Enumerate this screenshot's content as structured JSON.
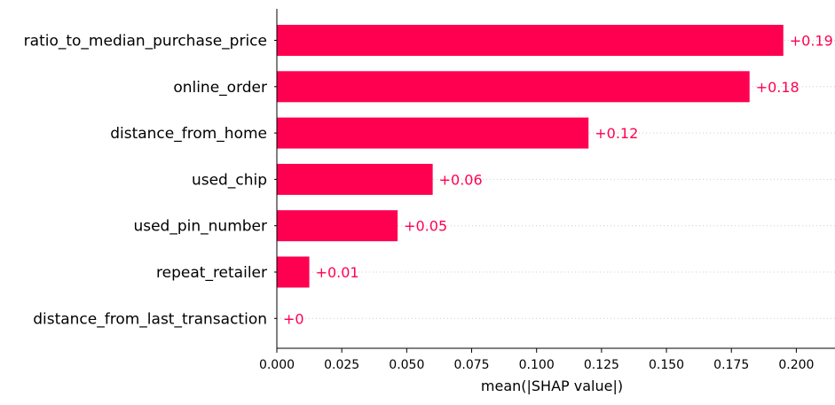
{
  "chart_data": {
    "type": "bar",
    "orientation": "horizontal",
    "categories": [
      "ratio_to_median_purchase_price",
      "online_order",
      "distance_from_home",
      "used_chip",
      "used_pin_number",
      "repeat_retailer",
      "distance_from_last_transaction"
    ],
    "values": [
      0.195,
      0.182,
      0.12,
      0.06,
      0.0465,
      0.0125,
      0.0
    ],
    "value_labels": [
      "+0.19",
      "+0.18",
      "+0.12",
      "+0.06",
      "+0.05",
      "+0.01",
      "+0"
    ],
    "xlabel": "mean(|SHAP value|)",
    "xlim": [
      0.0,
      0.215
    ],
    "xticks": [
      0.0,
      0.025,
      0.05,
      0.075,
      0.1,
      0.125,
      0.15,
      0.175,
      0.2
    ],
    "xtick_labels": [
      "0.000",
      "0.025",
      "0.050",
      "0.075",
      "0.100",
      "0.125",
      "0.150",
      "0.175",
      "0.200"
    ],
    "grid": "dotted horizontal lines per feature",
    "colors": {
      "bar": "#ff0051",
      "value_label": "#ff0051",
      "axis": "#000000",
      "text": "#000000",
      "grid": "#cccccc"
    }
  }
}
